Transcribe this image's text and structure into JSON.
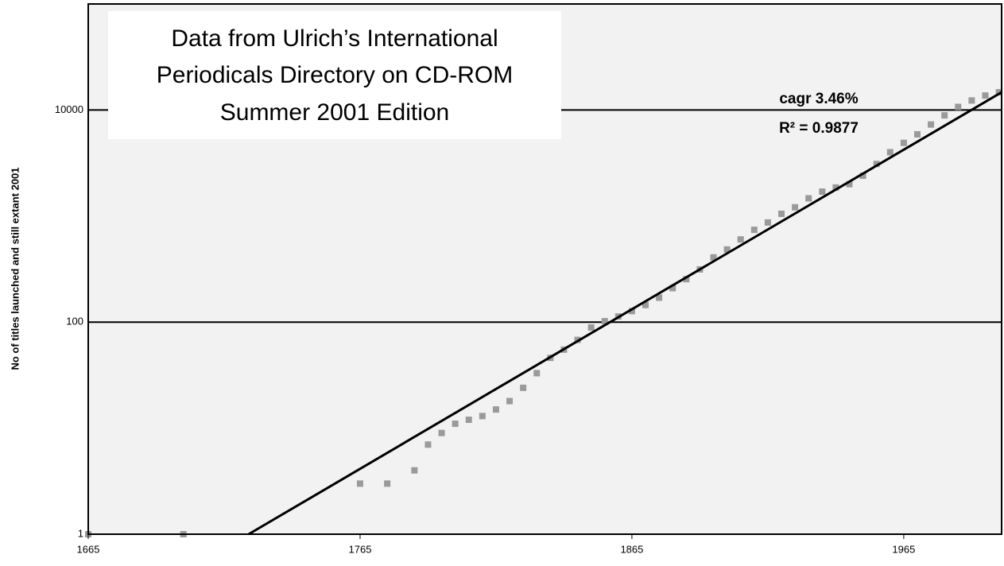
{
  "chart_data": {
    "type": "scatter",
    "title_lines": [
      "Data from Ulrich’s International",
      "Periodicals Directory on CD-ROM",
      "Summer 2001 Edition"
    ],
    "annotations": [
      "cagr 3.46%",
      "R² = 0.9877"
    ],
    "ylabel": "No of titles launched and still extant 2001",
    "yscale": "log",
    "grid": true,
    "xlim": [
      1665,
      2001
    ],
    "xticks": [
      1665,
      1765,
      1865,
      1965
    ],
    "ylim": [
      1,
      100000
    ],
    "yticks": [
      1,
      100,
      10000
    ],
    "series": [
      {
        "type": "scatter",
        "color": "#9a9a9a",
        "x": [
          1665,
          1700,
          1765,
          1775,
          1785,
          1790,
          1795,
          1800,
          1805,
          1810,
          1815,
          1820,
          1825,
          1830,
          1835,
          1840,
          1845,
          1850,
          1855,
          1860,
          1865,
          1870,
          1875,
          1880,
          1885,
          1890,
          1895,
          1900,
          1905,
          1910,
          1915,
          1920,
          1925,
          1930,
          1935,
          1940,
          1945,
          1950,
          1955,
          1960,
          1965,
          1970,
          1975,
          1980,
          1985,
          1990,
          1995,
          2000
        ],
        "values": [
          1,
          1,
          3,
          3,
          4,
          7,
          9,
          11,
          12,
          13,
          15,
          18,
          24,
          33,
          46,
          55,
          68,
          89,
          102,
          113,
          127,
          145,
          170,
          209,
          254,
          314,
          408,
          484,
          602,
          742,
          870,
          1050,
          1210,
          1470,
          1700,
          1860,
          2000,
          2400,
          3100,
          4000,
          4900,
          5900,
          7300,
          8900,
          10700,
          12300,
          13700,
          14700
        ]
      },
      {
        "type": "line",
        "color": "#000000",
        "x": [
          1724,
          2001
        ],
        "values": [
          1,
          14700
        ]
      }
    ]
  }
}
